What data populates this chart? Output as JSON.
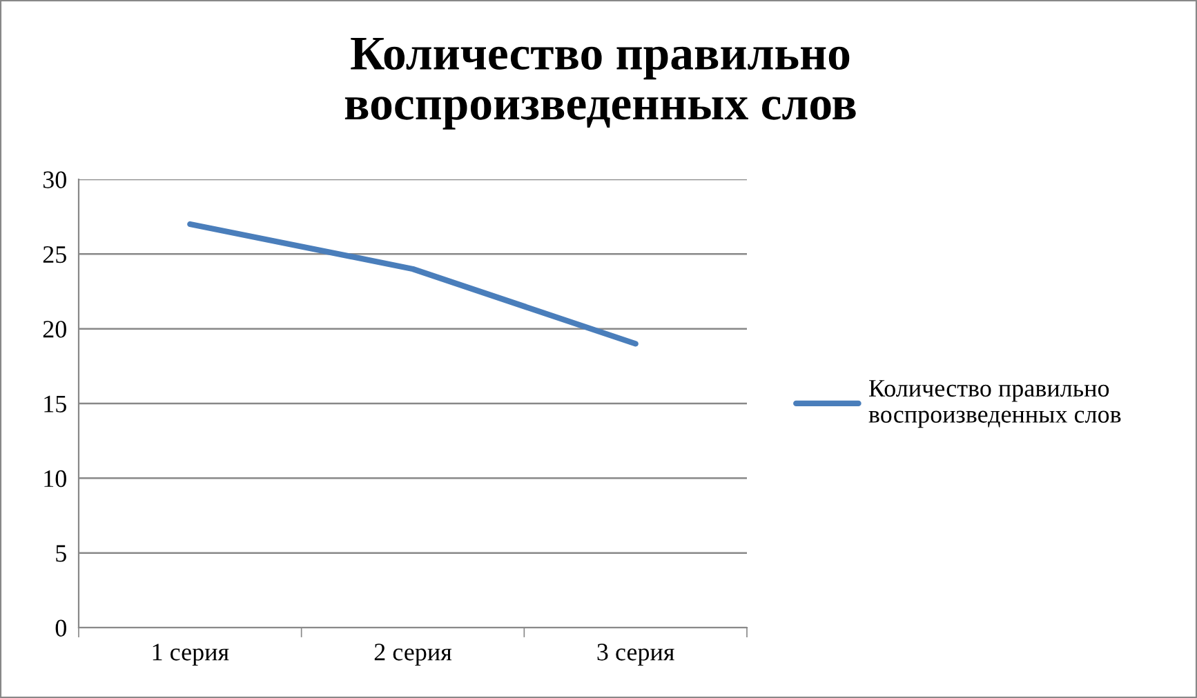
{
  "chart_data": {
    "type": "line",
    "title": "Количество правильно\nвоспроизведенных слов",
    "categories": [
      "1 серия",
      "2 серия",
      "3 серия"
    ],
    "series": [
      {
        "name": "Количество правильно\nвоспроизведенных слов",
        "color": "#4a7ebb",
        "values": [
          27,
          24,
          19
        ]
      }
    ],
    "ylim": [
      0,
      30
    ],
    "yticks": [
      0,
      5,
      10,
      15,
      20,
      25,
      30
    ],
    "grid": "y",
    "legend": "right",
    "marker": "none",
    "line_style": "solid"
  }
}
